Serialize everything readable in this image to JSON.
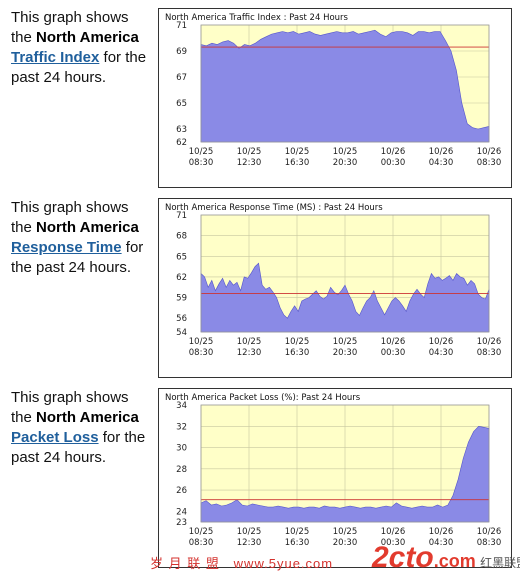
{
  "panels": [
    {
      "text_before": "This graph shows the ",
      "region": "North America",
      "link": "Traffic Index",
      "text_after": " for the past 24 hours."
    },
    {
      "text_before": "This graph shows the ",
      "region": "North America",
      "link": "Response Time",
      "text_after": " for the past 24 hours."
    },
    {
      "text_before": "This graph shows the ",
      "region": "North America",
      "link": "Packet Loss",
      "text_after": " for the past 24 hours."
    }
  ],
  "chart_data": [
    {
      "type": "area",
      "title": "North America Traffic Index : Past 24 Hours",
      "x_ticks": [
        [
          "10/25",
          "08:30"
        ],
        [
          "10/25",
          "12:30"
        ],
        [
          "10/25",
          "16:30"
        ],
        [
          "10/25",
          "20:30"
        ],
        [
          "10/26",
          "00:30"
        ],
        [
          "10/26",
          "04:30"
        ],
        [
          "10/26",
          "08:30"
        ]
      ],
      "y_ticks": [
        "62",
        "63",
        "65",
        "67",
        "69",
        "71"
      ],
      "ylim": [
        62,
        71
      ],
      "reference": 69.3,
      "colors": {
        "fill": "#8a8ae6",
        "stroke": "#5555cc",
        "plot_bg": "#ffffc8",
        "grid": "#c8c8a0",
        "reference": "#cc3333"
      },
      "values": [
        69.5,
        69.4,
        69.6,
        69.5,
        69.7,
        69.8,
        69.6,
        69.2,
        69.5,
        69.4,
        69.6,
        69.9,
        70.1,
        70.3,
        70.4,
        70.5,
        70.4,
        70.5,
        70.3,
        70.4,
        70.5,
        70.3,
        70.2,
        70.3,
        70.4,
        70.5,
        70.4,
        70.4,
        70.5,
        70.3,
        70.4,
        70.5,
        70.6,
        70.3,
        70.1,
        70.4,
        70.5,
        70.5,
        70.4,
        70.2,
        70.5,
        70.5,
        70.4,
        70.5,
        70.5,
        69.8,
        69.0,
        67.5,
        65.0,
        63.4,
        63.1,
        63.0,
        63.1,
        63.2
      ]
    },
    {
      "type": "area",
      "title": "North America Response Time (MS) : Past 24 Hours",
      "x_ticks": [
        [
          "10/25",
          "08:30"
        ],
        [
          "10/25",
          "12:30"
        ],
        [
          "10/25",
          "16:30"
        ],
        [
          "10/25",
          "20:30"
        ],
        [
          "10/26",
          "00:30"
        ],
        [
          "10/26",
          "04:30"
        ],
        [
          "10/26",
          "08:30"
        ]
      ],
      "y_ticks": [
        "54",
        "56",
        "59",
        "62",
        "65",
        "68",
        "71"
      ],
      "ylim": [
        54,
        71
      ],
      "reference": 59.6,
      "colors": {
        "fill": "#8a8ae6",
        "stroke": "#5555cc",
        "plot_bg": "#ffffc8",
        "grid": "#c8c8a0",
        "reference": "#cc3333"
      },
      "values": [
        62.5,
        62.0,
        60.5,
        61.5,
        60.0,
        61.0,
        61.8,
        60.5,
        61.5,
        60.8,
        61.2,
        60.0,
        62.0,
        61.8,
        62.6,
        63.5,
        64.0,
        60.8,
        60.2,
        60.5,
        59.8,
        59.0,
        57.5,
        56.5,
        56.0,
        57.0,
        57.8,
        57.0,
        58.5,
        58.8,
        59.0,
        59.5,
        60.0,
        59.2,
        58.8,
        59.2,
        60.5,
        59.8,
        59.4,
        60.0,
        60.8,
        59.5,
        58.5,
        57.0,
        56.4,
        57.5,
        58.5,
        59.0,
        60.0,
        58.5,
        57.5,
        56.5,
        57.5,
        58.5,
        59.0,
        58.5,
        57.8,
        57.0,
        58.5,
        59.5,
        60.2,
        59.5,
        59.0,
        61.0,
        62.5,
        61.8,
        62.0,
        61.5,
        61.8,
        62.2,
        61.5,
        62.5,
        62.0,
        61.8,
        60.8,
        61.5,
        61.0,
        59.5,
        59.0,
        58.8,
        60.2
      ]
    },
    {
      "type": "area",
      "title": "North America Packet Loss (%): Past 24 Hours",
      "x_ticks": [
        [
          "10/25",
          "08:30"
        ],
        [
          "10/25",
          "12:30"
        ],
        [
          "10/25",
          "16:30"
        ],
        [
          "10/25",
          "20:30"
        ],
        [
          "10/26",
          "00:30"
        ],
        [
          "10/26",
          "04:30"
        ],
        [
          "10/26",
          "08:30"
        ]
      ],
      "y_ticks": [
        "23",
        "24",
        "26",
        "28",
        "30",
        "32",
        "34"
      ],
      "ylim": [
        23,
        34
      ],
      "reference": 25.1,
      "colors": {
        "fill": "#8a8ae6",
        "stroke": "#5555cc",
        "plot_bg": "#ffffc8",
        "grid": "#c8c8a0",
        "reference": "#cc3333"
      },
      "values": [
        24.8,
        25.0,
        24.6,
        24.7,
        24.5,
        24.6,
        24.8,
        25.1,
        24.6,
        24.5,
        24.7,
        24.6,
        24.5,
        24.4,
        24.4,
        24.5,
        24.4,
        24.3,
        24.4,
        24.4,
        24.3,
        24.4,
        24.4,
        24.3,
        24.5,
        24.4,
        24.4,
        24.3,
        24.4,
        24.5,
        24.4,
        24.3,
        24.4,
        24.4,
        24.3,
        24.4,
        24.5,
        24.4,
        24.8,
        24.5,
        24.4,
        24.3,
        24.4,
        24.5,
        24.4,
        24.4,
        24.6,
        24.4,
        24.6,
        25.5,
        27.0,
        29.0,
        30.5,
        31.5,
        32.0,
        31.9,
        31.8
      ]
    }
  ],
  "watermarks": {
    "left": "岁 月 联 盟   www.5yue.com",
    "logo": "2cto",
    "logo_tld": ".com",
    "logo_sub": "红黑联盟"
  }
}
